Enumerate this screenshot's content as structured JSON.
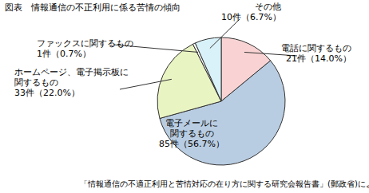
{
  "chart_data": {
    "type": "pie",
    "title": "図表　情報通信の不正利用に係る苦情の傾向",
    "categories": [
      "電話に関するもの",
      "電子メールに関するもの",
      "ホームページ、電子掲示板に関するもの",
      "ファックスに関するもの",
      "その他"
    ],
    "values": [
      21,
      85,
      33,
      1,
      10
    ],
    "value_labels": [
      "21件（14.0%）",
      "85件（56.7%）",
      "33件（22.0%）",
      "1件（0.7%）",
      "10件（6.7%）"
    ],
    "colors": [
      "#f9d3d3",
      "#b9cde2",
      "#e9f4c3",
      "#f6f6f6",
      "#d9f1f8"
    ],
    "data_labels": true,
    "annotations": [
      "「情報通信の不適正利用と苦情対応の在り方に関する研究会報告書」(郵政省)による"
    ]
  }
}
